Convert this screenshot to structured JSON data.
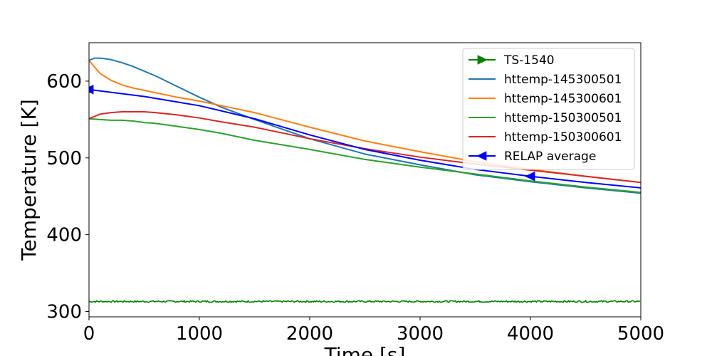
{
  "chart_data": {
    "type": "line",
    "xlabel": "Time [s]",
    "ylabel": "Temperature [K]",
    "xlim": [
      0,
      5000
    ],
    "ylim": [
      293,
      650
    ],
    "xticks": [
      0,
      1000,
      2000,
      3000,
      4000,
      5000
    ],
    "yticks": [
      300,
      400,
      500,
      600
    ],
    "grid": false,
    "legend_position": "top-right",
    "series": [
      {
        "name": "TS-1540",
        "color": "#008000",
        "marker": "triangle-right",
        "noise": true,
        "x": [
          0,
          5000
        ],
        "y": [
          313,
          313
        ]
      },
      {
        "name": "httemp-145300501",
        "color": "#1f77b4",
        "x": [
          0,
          50,
          100,
          200,
          300,
          400,
          500,
          600,
          800,
          1000,
          1200,
          1500,
          2000,
          2500,
          3000,
          3500,
          4000,
          4500,
          5000
        ],
        "y": [
          627,
          630,
          630,
          628,
          624,
          619,
          613,
          607,
          593,
          579,
          566,
          550,
          525,
          505,
          491,
          478,
          469,
          461,
          454
        ]
      },
      {
        "name": "httemp-145300601",
        "color": "#ff7f0e",
        "x": [
          0,
          100,
          200,
          300,
          400,
          500,
          600,
          800,
          1000,
          1200,
          1500,
          2000,
          2500,
          3000,
          3500,
          4000,
          4500,
          5000
        ],
        "y": [
          627,
          610,
          601,
          595,
          591,
          588,
          585,
          579,
          574,
          568,
          559,
          540,
          522,
          508,
          495,
          485,
          476,
          468
        ]
      },
      {
        "name": "httemp-150300501",
        "color": "#2ca02c",
        "x": [
          0,
          100,
          200,
          300,
          400,
          500,
          600,
          800,
          1000,
          1200,
          1500,
          2000,
          2500,
          3000,
          3500,
          4000,
          4500,
          5000
        ],
        "y": [
          551,
          550,
          549,
          549,
          548,
          546,
          545,
          541,
          537,
          532,
          523,
          511,
          498,
          488,
          479,
          470,
          462,
          455
        ]
      },
      {
        "name": "httemp-150300601",
        "color": "#d62728",
        "x": [
          0,
          100,
          200,
          300,
          400,
          500,
          600,
          800,
          1000,
          1200,
          1500,
          2000,
          2500,
          3000,
          3500,
          4000,
          4500,
          5000
        ],
        "y": [
          551,
          557,
          559,
          560,
          560,
          560,
          559,
          556,
          552,
          547,
          540,
          525,
          512,
          501,
          492,
          484,
          476,
          468
        ]
      },
      {
        "name": "RELAP average",
        "color": "#0000ff",
        "marker": "triangle-left",
        "marker_at": [
          0,
          4000
        ],
        "x": [
          0,
          500,
          1000,
          1500,
          2000,
          2500,
          3000,
          3500,
          4000,
          4500,
          5000
        ],
        "y": [
          589,
          580,
          568,
          551,
          530,
          511,
          497,
          485,
          476,
          468,
          461
        ]
      }
    ]
  }
}
